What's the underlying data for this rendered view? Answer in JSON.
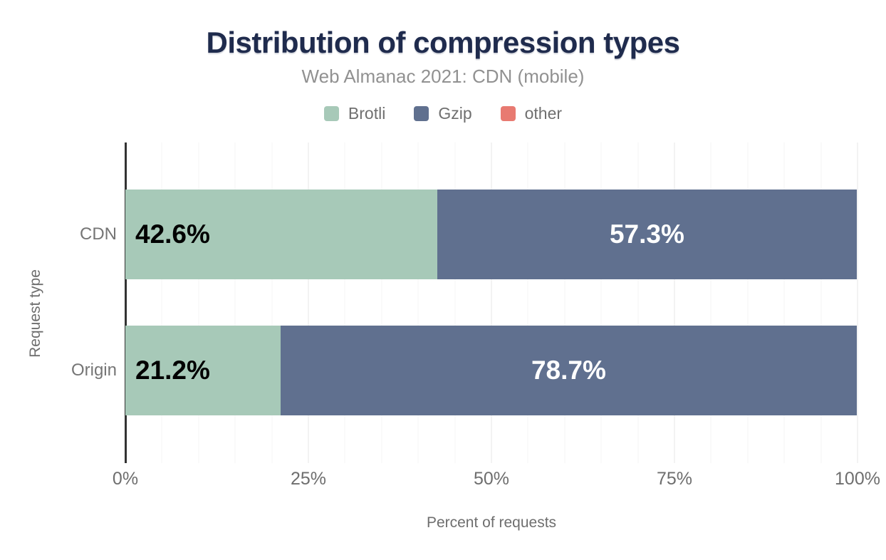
{
  "chart_data": {
    "type": "bar",
    "orientation": "horizontal",
    "stacked": true,
    "title": "Distribution of compression types",
    "subtitle": "Web Almanac 2021: CDN (mobile)",
    "xlabel": "Percent of requests",
    "ylabel": "Request type",
    "xlim": [
      0,
      100
    ],
    "categories": [
      "CDN",
      "Origin"
    ],
    "series": [
      {
        "name": "Brotli",
        "color": "#a7c9b8",
        "values": [
          42.6,
          21.2
        ],
        "data_labels": [
          "42.6%",
          "21.2%"
        ],
        "label_color": "#000000",
        "label_align": "left"
      },
      {
        "name": "Gzip",
        "color": "#60708f",
        "values": [
          57.3,
          78.7
        ],
        "data_labels": [
          "57.3%",
          "78.7%"
        ],
        "label_color": "#ffffff",
        "label_align": "center"
      },
      {
        "name": "other",
        "color": "#e87a71",
        "values": [
          null,
          null
        ],
        "data_labels": [
          "",
          ""
        ],
        "label_color": "#000000",
        "label_align": "center"
      }
    ],
    "x_ticks": [
      {
        "label": "0%",
        "value": 0
      },
      {
        "label": "25%",
        "value": 25
      },
      {
        "label": "50%",
        "value": 50
      },
      {
        "label": "75%",
        "value": 75
      },
      {
        "label": "100%",
        "value": 100
      }
    ],
    "grid": {
      "minor_step": 5,
      "major_step": 25,
      "minor_color": "#f4f4f4",
      "major_color": "#e7e7e7"
    },
    "legend_position": "top"
  },
  "legend": [
    {
      "label": "Brotli",
      "color": "#a7c9b8"
    },
    {
      "label": "Gzip",
      "color": "#60708f"
    },
    {
      "label": "other",
      "color": "#e87a71"
    }
  ],
  "colors": {
    "title": "#1f2b4d",
    "subtitle": "#919191",
    "axis_line": "#333333",
    "tick_text": "#6e6e6e",
    "category_text": "#757575",
    "background": "#ffffff"
  }
}
